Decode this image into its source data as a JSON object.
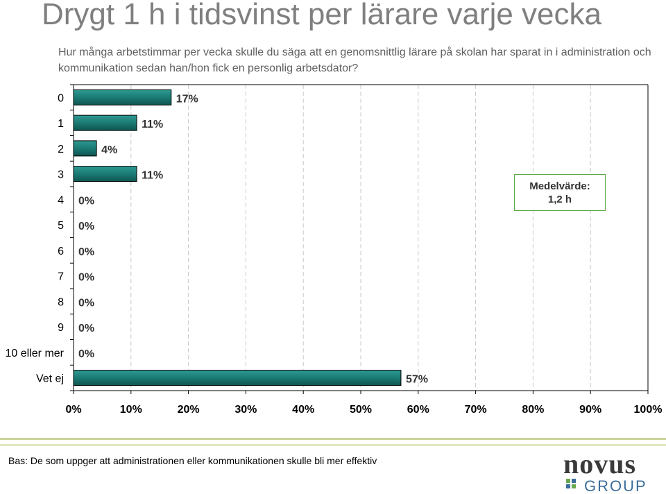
{
  "header": {
    "title": "Drygt 1 h i tidsvinst per lärare varje vecka",
    "subtitle": "Hur många arbetstimmar per vecka skulle du säga att en genomsnittlig lärare på skolan har sparat in i administration och kommunikation sedan han/hon fick en personlig arbetsdator?"
  },
  "chart_data": {
    "type": "bar",
    "orientation": "horizontal",
    "categories": [
      "0",
      "1",
      "2",
      "3",
      "4",
      "5",
      "6",
      "7",
      "8",
      "9",
      "10 eller mer",
      "Vet ej"
    ],
    "values": [
      17,
      11,
      4,
      11,
      0,
      0,
      0,
      0,
      0,
      0,
      0,
      57
    ],
    "value_labels": [
      "17%",
      "11%",
      "4%",
      "11%",
      "0%",
      "0%",
      "0%",
      "0%",
      "0%",
      "0%",
      "0%",
      "57%"
    ],
    "xlim": [
      0,
      100
    ],
    "xticks": [
      0,
      10,
      20,
      30,
      40,
      50,
      60,
      70,
      80,
      90,
      100
    ],
    "xtick_labels": [
      "0%",
      "10%",
      "20%",
      "30%",
      "40%",
      "50%",
      "60%",
      "70%",
      "80%",
      "90%",
      "100%"
    ],
    "grid": true,
    "bar_color": "#1a7a74",
    "title": "",
    "xlabel": "",
    "ylabel": ""
  },
  "annotation": {
    "label": "Medelvärde:",
    "value": "1,2 h"
  },
  "footer": {
    "note": "Bas: De som uppger att administrationen eller kommunikationen skulle bli mer effektiv"
  },
  "logo": {
    "line1": "novus",
    "line2": "GROUP",
    "colors": {
      "dark": "#3a3a3a",
      "green": "#6aa84f",
      "blue": "#3a6d9a"
    }
  }
}
